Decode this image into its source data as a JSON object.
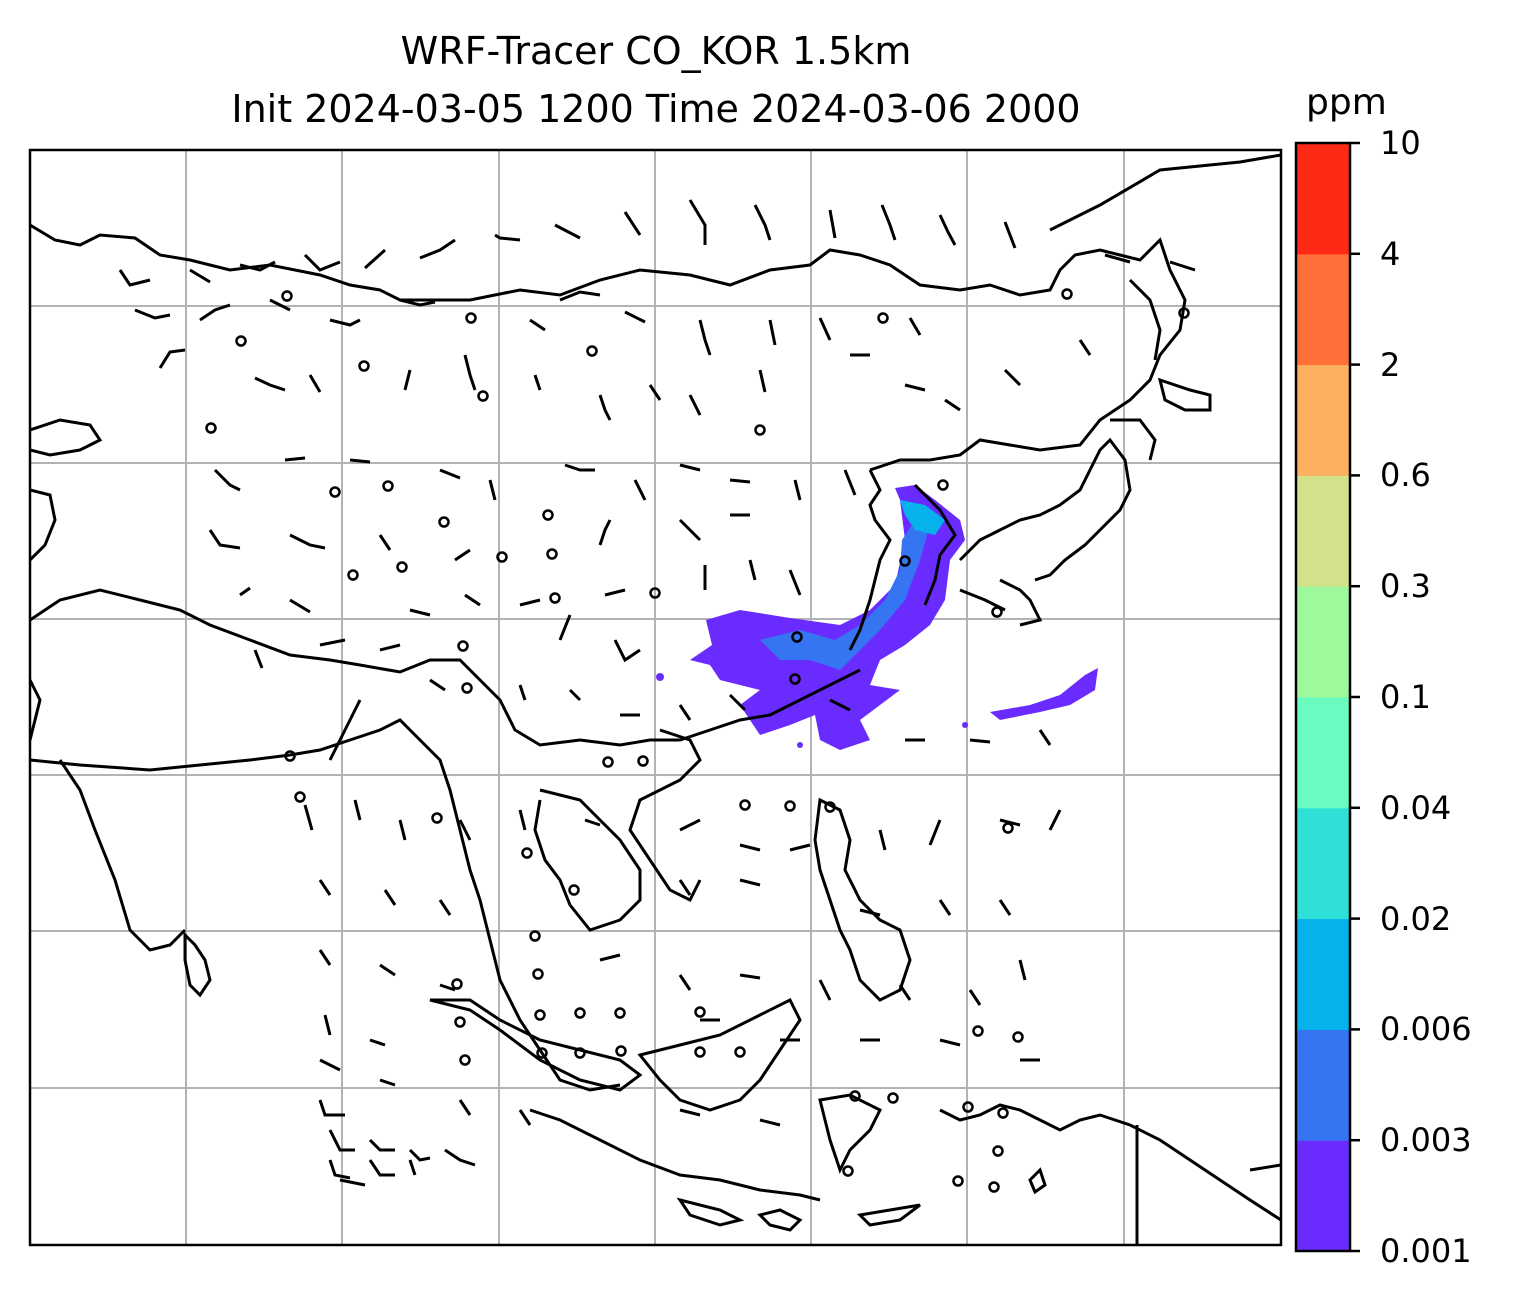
{
  "title": {
    "line1": "WRF-Tracer CO_KOR 1.5km",
    "line2": "Init 2024-03-05 1200 Time 2024-03-06 2000"
  },
  "colorbar": {
    "unit": "ppm",
    "ticks": [
      "0.001",
      "0.003",
      "0.006",
      "0.02",
      "0.04",
      "0.1",
      "0.3",
      "0.6",
      "2",
      "4",
      "10"
    ],
    "colors": [
      "#6a2bff",
      "#3575f2",
      "#05b2ec",
      "#2fe0d6",
      "#69fbc0",
      "#9ef99c",
      "#d1e28a",
      "#fdb05f",
      "#ff7039",
      "#ff2a16"
    ]
  },
  "map": {
    "gridlines": true,
    "wind_barbs": true,
    "plume": {
      "color_level": "0.001-0.003",
      "color": "#6a2bff",
      "secondary_color": "#3575f2",
      "core_color": "#05b2ec"
    }
  }
}
